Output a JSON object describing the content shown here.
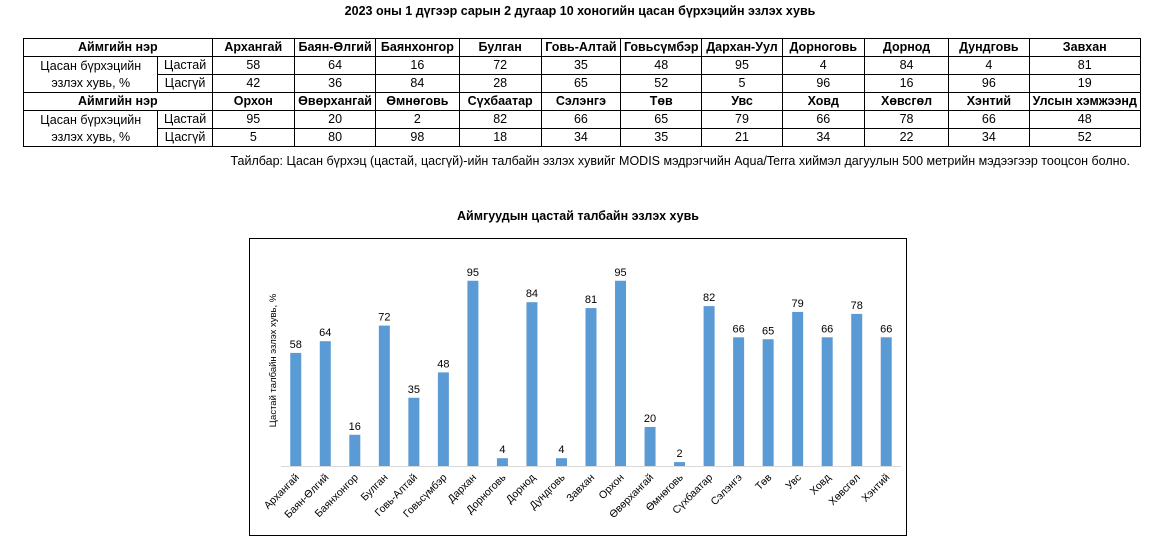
{
  "page": {
    "title": "2023 оны 1 дүгээр сарын 2 дугаар 10 хоногийн цасан бүрхэцийн эзлэх хувь",
    "note": "Тайлбар: Цасан бүрхэц (цастай, цасгүй)-ийн талбайн эзлэх хувийг MODIS мэдрэгчийн Aqua/Terra хиймэл дагуулын 500 метрийн мэдээгээр тооцсон болно."
  },
  "table": {
    "header_label": "Аймгийн нэр",
    "row_label": "Цасан бүрхэцийн эзлэх хувь, %",
    "sub_snow": "Цастай",
    "sub_nosnow": "Цасгүй",
    "group1": {
      "names": [
        "Архангай",
        "Баян-Өлгий",
        "Баянхонгор",
        "Булган",
        "Говь-Алтай",
        "Говьсүмбэр",
        "Дархан-Уул",
        "Дорноговь",
        "Дорнод",
        "Дундговь",
        "Завхан"
      ],
      "snow": [
        "58",
        "64",
        "16",
        "72",
        "35",
        "48",
        "95",
        "4",
        "84",
        "4",
        "81"
      ],
      "nosnow": [
        "42",
        "36",
        "84",
        "28",
        "65",
        "52",
        "5",
        "96",
        "16",
        "96",
        "19"
      ]
    },
    "group2": {
      "names": [
        "Орхон",
        "Өвөрхангай",
        "Өмнөговь",
        "Сүхбаатар",
        "Сэлэнгэ",
        "Төв",
        "Увс",
        "Ховд",
        "Хөвсгөл",
        "Хэнтий",
        "Улсын хэмжээнд"
      ],
      "snow": [
        "95",
        "20",
        "2",
        "82",
        "66",
        "65",
        "79",
        "66",
        "78",
        "66",
        "48"
      ],
      "nosnow": [
        "5",
        "80",
        "98",
        "18",
        "34",
        "35",
        "21",
        "34",
        "22",
        "34",
        "52"
      ]
    }
  },
  "chart_data": {
    "type": "bar",
    "title": "Аймгуудын цастай талбайн эзлэх хувь",
    "ylabel": "Цастай талбайн эзлэх хувь, %",
    "xlabel": "",
    "ylim": [
      0,
      100
    ],
    "grid": false,
    "bar_color": "#5b9bd5",
    "categories": [
      "Архангай",
      "Баян-Өлгий",
      "Баянхонгор",
      "Булган",
      "Говь-Алтай",
      "Говьсүмбэр",
      "Дархан",
      "Дорноговь",
      "Дорнод",
      "Дундговь",
      "Завхан",
      "Орхон",
      "Өвөрхангай",
      "Өмнөговь",
      "Сүхбаатар",
      "Сэлэнгэ",
      "Төв",
      "Увс",
      "Ховд",
      "Хөвсгөл",
      "Хэнтий"
    ],
    "values": [
      58,
      64,
      16,
      72,
      35,
      48,
      95,
      4,
      84,
      4,
      81,
      95,
      20,
      2,
      82,
      66,
      65,
      79,
      66,
      78,
      66
    ]
  }
}
